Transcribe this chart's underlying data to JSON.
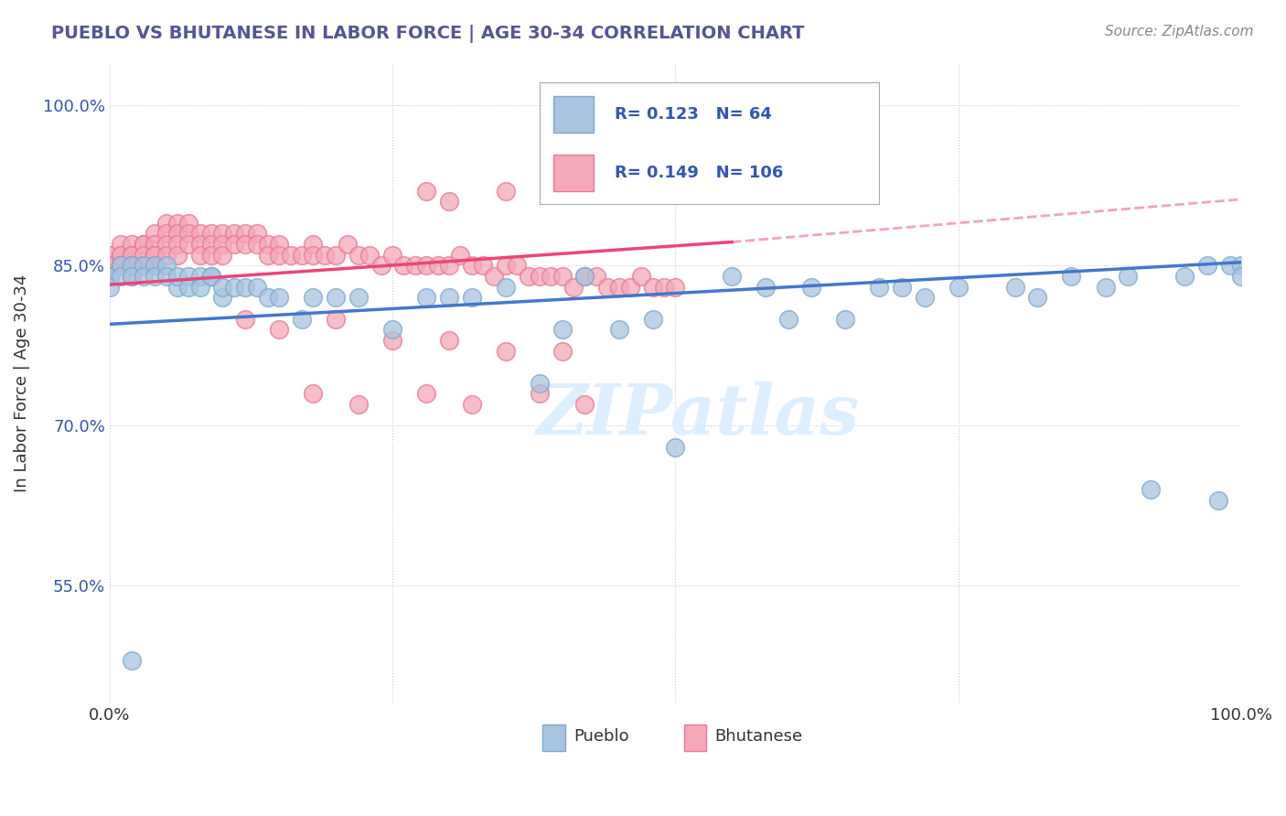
{
  "title": "PUEBLO VS BHUTANESE IN LABOR FORCE | AGE 30-34 CORRELATION CHART",
  "source_text": "Source: ZipAtlas.com",
  "ylabel": "In Labor Force | Age 30-34",
  "xlim": [
    0.0,
    1.0
  ],
  "ylim": [
    0.44,
    1.04
  ],
  "xticks": [
    0.0,
    0.25,
    0.5,
    0.75,
    1.0
  ],
  "xticklabels": [
    "0.0%",
    "",
    "",
    "",
    "100.0%"
  ],
  "yticks": [
    0.55,
    0.7,
    0.85,
    1.0
  ],
  "yticklabels": [
    "55.0%",
    "70.0%",
    "85.0%",
    "100.0%"
  ],
  "pueblo_color": "#A8C4E0",
  "bhutanese_color": "#F4A8B8",
  "pueblo_edge": "#7AAAD0",
  "bhutanese_edge": "#E87898",
  "pueblo_R": 0.123,
  "pueblo_N": 64,
  "bhutanese_R": 0.149,
  "bhutanese_N": 106,
  "pueblo_line_color": "#4477CC",
  "bhutanese_line_color": "#EE4477",
  "pueblo_line_dashed_color": "#BBBBDD",
  "background_color": "#FFFFFF",
  "grid_color": "#CCCCCC",
  "watermark_color": "#DDEEFF",
  "title_color": "#555599",
  "legend_color": "#3355BB",
  "pueblo_x": [
    0.0,
    0.0,
    0.01,
    0.01,
    0.02,
    0.02,
    0.02,
    0.03,
    0.03,
    0.04,
    0.04,
    0.05,
    0.05,
    0.06,
    0.06,
    0.07,
    0.07,
    0.08,
    0.08,
    0.09,
    0.09,
    0.1,
    0.1,
    0.11,
    0.12,
    0.13,
    0.14,
    0.15,
    0.17,
    0.18,
    0.2,
    0.22,
    0.25,
    0.28,
    0.3,
    0.32,
    0.35,
    0.38,
    0.4,
    0.42,
    0.45,
    0.48,
    0.5,
    0.55,
    0.58,
    0.6,
    0.62,
    0.65,
    0.68,
    0.7,
    0.72,
    0.75,
    0.8,
    0.82,
    0.85,
    0.88,
    0.9,
    0.92,
    0.95,
    0.97,
    0.98,
    0.99,
    1.0,
    1.0
  ],
  "pueblo_y": [
    0.84,
    0.83,
    0.85,
    0.84,
    0.85,
    0.84,
    0.48,
    0.85,
    0.84,
    0.85,
    0.84,
    0.85,
    0.84,
    0.83,
    0.84,
    0.84,
    0.83,
    0.84,
    0.83,
    0.84,
    0.84,
    0.82,
    0.83,
    0.83,
    0.83,
    0.83,
    0.82,
    0.82,
    0.8,
    0.82,
    0.82,
    0.82,
    0.79,
    0.82,
    0.82,
    0.82,
    0.83,
    0.74,
    0.79,
    0.84,
    0.79,
    0.8,
    0.68,
    0.84,
    0.83,
    0.8,
    0.83,
    0.8,
    0.83,
    0.83,
    0.82,
    0.83,
    0.83,
    0.82,
    0.84,
    0.83,
    0.84,
    0.64,
    0.84,
    0.85,
    0.63,
    0.85,
    0.85,
    0.84
  ],
  "bhutanese_x": [
    0.0,
    0.0,
    0.0,
    0.01,
    0.01,
    0.01,
    0.01,
    0.01,
    0.02,
    0.02,
    0.02,
    0.02,
    0.02,
    0.02,
    0.03,
    0.03,
    0.03,
    0.03,
    0.04,
    0.04,
    0.04,
    0.04,
    0.04,
    0.05,
    0.05,
    0.05,
    0.05,
    0.06,
    0.06,
    0.06,
    0.06,
    0.07,
    0.07,
    0.07,
    0.08,
    0.08,
    0.08,
    0.09,
    0.09,
    0.09,
    0.1,
    0.1,
    0.1,
    0.11,
    0.11,
    0.12,
    0.12,
    0.13,
    0.13,
    0.14,
    0.14,
    0.15,
    0.15,
    0.16,
    0.17,
    0.18,
    0.18,
    0.19,
    0.2,
    0.21,
    0.22,
    0.23,
    0.24,
    0.25,
    0.26,
    0.27,
    0.28,
    0.29,
    0.3,
    0.31,
    0.32,
    0.33,
    0.34,
    0.35,
    0.36,
    0.37,
    0.38,
    0.39,
    0.4,
    0.41,
    0.42,
    0.43,
    0.44,
    0.45,
    0.46,
    0.47,
    0.48,
    0.49,
    0.5,
    0.28,
    0.3,
    0.35,
    0.4,
    0.12,
    0.15,
    0.2,
    0.25,
    0.3,
    0.35,
    0.4,
    0.18,
    0.22,
    0.28,
    0.32,
    0.38,
    0.42
  ],
  "bhutanese_y": [
    0.86,
    0.85,
    0.84,
    0.87,
    0.86,
    0.86,
    0.85,
    0.85,
    0.87,
    0.86,
    0.86,
    0.85,
    0.85,
    0.84,
    0.87,
    0.87,
    0.86,
    0.85,
    0.88,
    0.87,
    0.86,
    0.86,
    0.85,
    0.89,
    0.88,
    0.87,
    0.86,
    0.89,
    0.88,
    0.87,
    0.86,
    0.89,
    0.88,
    0.87,
    0.88,
    0.87,
    0.86,
    0.88,
    0.87,
    0.86,
    0.88,
    0.87,
    0.86,
    0.88,
    0.87,
    0.88,
    0.87,
    0.88,
    0.87,
    0.87,
    0.86,
    0.87,
    0.86,
    0.86,
    0.86,
    0.87,
    0.86,
    0.86,
    0.86,
    0.87,
    0.86,
    0.86,
    0.85,
    0.86,
    0.85,
    0.85,
    0.85,
    0.85,
    0.85,
    0.86,
    0.85,
    0.85,
    0.84,
    0.85,
    0.85,
    0.84,
    0.84,
    0.84,
    0.84,
    0.83,
    0.84,
    0.84,
    0.83,
    0.83,
    0.83,
    0.84,
    0.83,
    0.83,
    0.83,
    0.92,
    0.91,
    0.92,
    0.93,
    0.8,
    0.79,
    0.8,
    0.78,
    0.78,
    0.77,
    0.77,
    0.73,
    0.72,
    0.73,
    0.72,
    0.73,
    0.72
  ],
  "pueblo_trend_x0": 0.0,
  "pueblo_trend_y0": 0.795,
  "pueblo_trend_x1": 1.0,
  "pueblo_trend_y1": 0.853,
  "bhutanese_trend_x0": 0.0,
  "bhutanese_trend_y0": 0.832,
  "bhutanese_trend_x1": 0.55,
  "bhutanese_trend_x1_dashed": 1.0,
  "bhutanese_trend_y1": 0.872,
  "bhutanese_trend_y1_dashed": 0.912
}
